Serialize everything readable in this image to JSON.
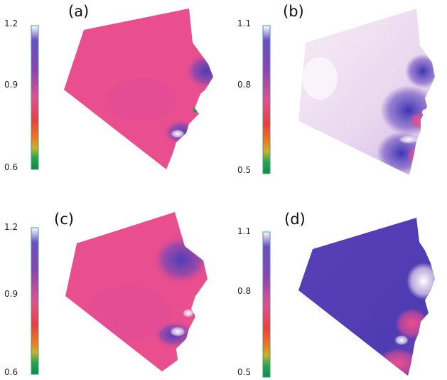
{
  "figure": {
    "panels": [
      {
        "label": "(a)",
        "ticks": [
          "1.2",
          "0.9",
          "0.6"
        ]
      },
      {
        "label": "(b)",
        "ticks": [
          "1.1",
          "0.8",
          "0.5"
        ]
      },
      {
        "label": "(c)",
        "ticks": [
          "1.2",
          "0.9",
          "0.6"
        ]
      },
      {
        "label": "(d)",
        "ticks": [
          "1.1",
          "0.8",
          "0.5"
        ]
      }
    ]
  },
  "colors": {
    "pink": "#e94e8e",
    "purple": "#5a3fb8",
    "white": "#f7eef6",
    "red": "#e8373f",
    "orange": "#f07a1c",
    "green": "#1f9a4a"
  }
}
